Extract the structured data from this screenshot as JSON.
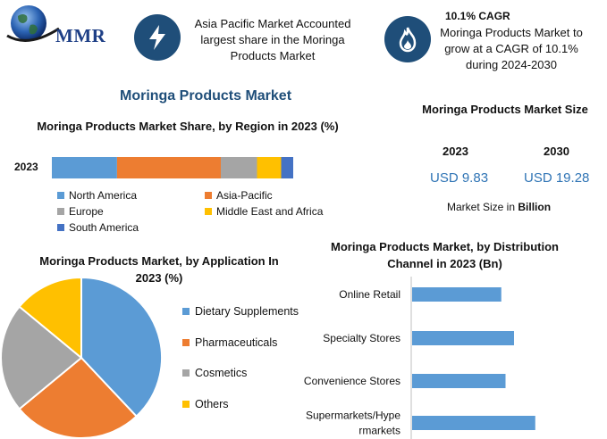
{
  "brand": {
    "name": "MMR"
  },
  "highlights": [
    {
      "icon": "lightning-bolt-icon",
      "text": "Asia Pacific Market Accounted largest share in the Moringa Products Market"
    },
    {
      "icon": "flame-icon",
      "title": "10.1% CAGR",
      "text": "Moringa Products Market to grow at a CAGR of 10.1% during 2024-2030"
    }
  ],
  "main_title": "Moringa Products Market",
  "market_size": {
    "title": "Moringa Products Market Size",
    "years": [
      "2023",
      "2030"
    ],
    "values": [
      "USD 9.83",
      "USD 19.28"
    ],
    "note_prefix": "Market Size in ",
    "note_unit": "Billion"
  },
  "colors": {
    "blue": "#5b9bd5",
    "orange": "#ed7d31",
    "gray": "#a5a5a5",
    "yellow": "#ffc000",
    "darkblue": "#4472c4",
    "navy": "#1f4e79"
  },
  "chart_data": [
    {
      "type": "bar",
      "orientation": "horizontal-stacked",
      "title": "Moringa Products Market Share, by Region in 2023 (%)",
      "categories": [
        "2023"
      ],
      "series": [
        {
          "name": "North America",
          "values": [
            27
          ],
          "color": "#5b9bd5"
        },
        {
          "name": "Asia-Pacific",
          "values": [
            43
          ],
          "color": "#ed7d31"
        },
        {
          "name": "Europe",
          "values": [
            15
          ],
          "color": "#a5a5a5"
        },
        {
          "name": "Middle East and Africa",
          "values": [
            10
          ],
          "color": "#ffc000"
        },
        {
          "name": "South America",
          "values": [
            5
          ],
          "color": "#4472c4"
        }
      ],
      "legend": "bottom"
    },
    {
      "type": "pie",
      "title": "Moringa Products Market, by Application In 2023 (%)",
      "labels": [
        "Dietary Supplements",
        "Pharmaceuticals",
        "Cosmetics",
        "Others"
      ],
      "values": [
        38,
        26,
        22,
        14
      ],
      "colors": [
        "#5b9bd5",
        "#ed7d31",
        "#a5a5a5",
        "#ffc000"
      ],
      "legend": "right"
    },
    {
      "type": "bar",
      "orientation": "horizontal",
      "title": "Moringa Products Market, by Distribution Channel in 2023 (Bn)",
      "categories": [
        "Online Retail",
        "Specialty Stores",
        "Convenience Stores",
        "Supermarkets/Hypermarkets"
      ],
      "category_lines": [
        [
          "Online Retail"
        ],
        [
          "Specialty Stores"
        ],
        [
          "Convenience Stores"
        ],
        [
          "Supermarkets/Hype",
          "rmarkets"
        ]
      ],
      "values": [
        2.1,
        2.4,
        2.2,
        2.9
      ],
      "xlim": [
        0,
        4
      ],
      "color": "#5b9bd5",
      "grid": false
    }
  ]
}
